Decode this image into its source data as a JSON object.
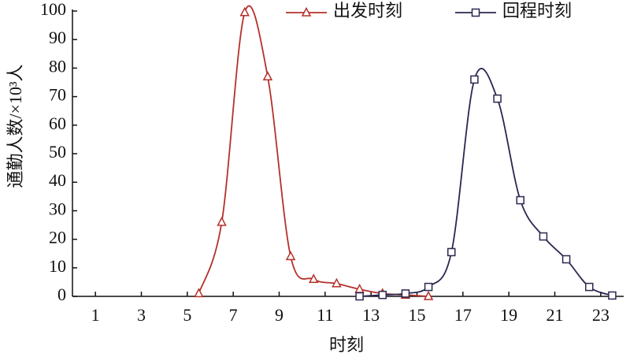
{
  "chart_data": {
    "type": "line",
    "x_label": "时刻",
    "y_label": "通勤人数/×10³人",
    "xlim": [
      0,
      24
    ],
    "xticks": [
      1,
      3,
      5,
      7,
      9,
      11,
      13,
      15,
      17,
      19,
      21,
      23
    ],
    "ylim": [
      0,
      100
    ],
    "yticks": [
      0,
      10,
      20,
      30,
      40,
      50,
      60,
      70,
      80,
      90,
      100
    ],
    "legend": "top-right",
    "series": [
      {
        "name": "出发时刻",
        "color": "#b5302a",
        "marker": "triangle",
        "x": [
          5.5,
          6.5,
          7.5,
          8.5,
          9.5,
          10.5,
          11.5,
          12.5,
          13.5,
          14.5,
          15.5
        ],
        "values": [
          1,
          26,
          99.5,
          77,
          14,
          6,
          4.5,
          2.5,
          1,
          0.5,
          0
        ]
      },
      {
        "name": "回程时刻",
        "color": "#2a2750",
        "marker": "square",
        "x": [
          12.5,
          13.5,
          14.5,
          15.5,
          16.5,
          17.5,
          18.5,
          19.5,
          20.5,
          21.5,
          22.5,
          23.5
        ],
        "values": [
          0,
          0.5,
          1,
          3.3,
          15.5,
          76,
          69.3,
          33.7,
          21,
          13,
          3.3,
          0.3
        ]
      }
    ]
  }
}
